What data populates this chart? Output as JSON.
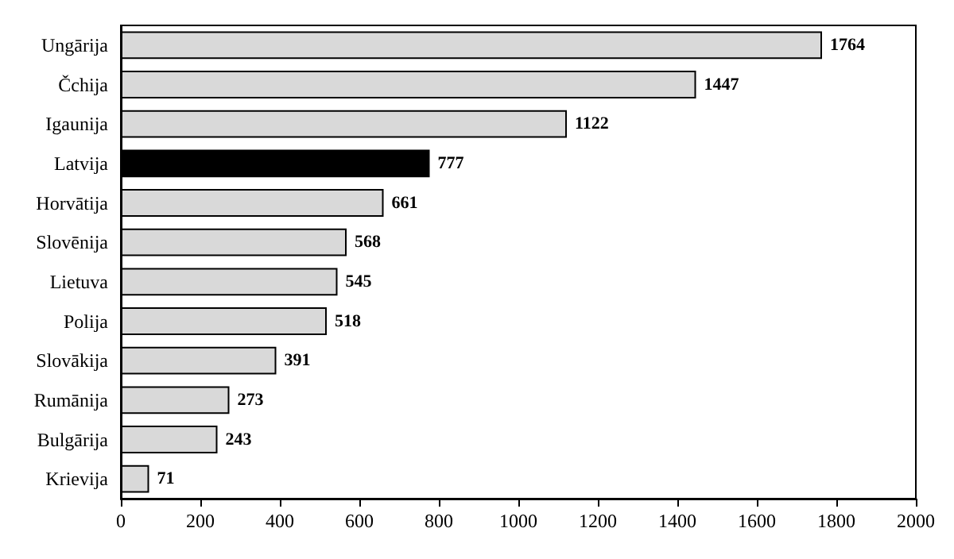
{
  "chart_data": {
    "type": "bar",
    "orientation": "horizontal",
    "categories": [
      "Ungārija",
      "Čchija",
      "Igaunija",
      "Latvija",
      "Horvātija",
      "Slovēnija",
      "Lietuva",
      "Polija",
      "Slovākija",
      "Rumānija",
      "Bulgārija",
      "Krievija"
    ],
    "values": [
      1764,
      1447,
      1122,
      777,
      661,
      568,
      545,
      518,
      391,
      273,
      243,
      71
    ],
    "colors": [
      "#d9d9d9",
      "#d9d9d9",
      "#d9d9d9",
      "#000000",
      "#d9d9d9",
      "#d9d9d9",
      "#d9d9d9",
      "#d9d9d9",
      "#d9d9d9",
      "#d9d9d9",
      "#d9d9d9",
      "#d9d9d9"
    ],
    "xlim": [
      0,
      2000
    ],
    "xticks": [
      0,
      200,
      400,
      600,
      800,
      1000,
      1200,
      1400,
      1600,
      1800,
      2000
    ],
    "data_labels": true,
    "grid": false
  }
}
